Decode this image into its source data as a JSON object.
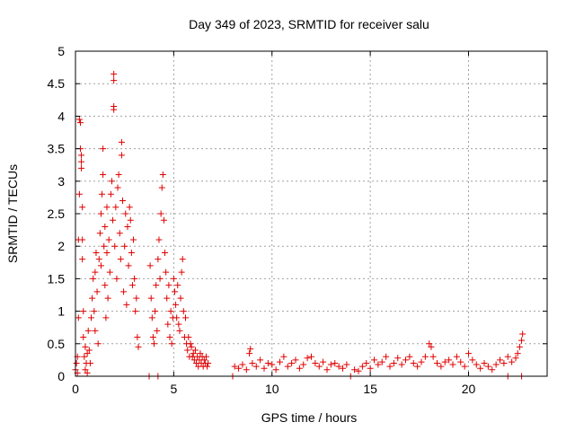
{
  "chart_data": {
    "type": "scatter",
    "title": "Day 349 of 2023, SRMTID for receiver salu",
    "xlabel": "GPS time / hours",
    "ylabel": "SRMTID / TECUs",
    "xlim": [
      0,
      24
    ],
    "ylim": [
      0,
      5
    ],
    "xticks": [
      0,
      5,
      10,
      15,
      20
    ],
    "yticks": [
      0,
      0.5,
      1,
      1.5,
      2,
      2.5,
      3,
      3.5,
      4,
      4.5,
      5
    ],
    "xtick_labels": [
      "0",
      "5",
      "10",
      "15",
      "20"
    ],
    "ytick_labels": [
      "0",
      "0.5",
      "1",
      "1.5",
      "2",
      "2.5",
      "3",
      "3.5",
      "4",
      "4.5",
      "5"
    ],
    "grid": true,
    "marker": "plus",
    "color": "#e00000",
    "series": [
      {
        "name": "SRMTID",
        "points": [
          [
            0.0,
            0.1
          ],
          [
            0.05,
            0.2
          ],
          [
            0.1,
            0.3
          ],
          [
            0.1,
            0.05
          ],
          [
            0.15,
            0.9
          ],
          [
            0.15,
            2.1
          ],
          [
            0.2,
            2.8
          ],
          [
            0.2,
            3.95
          ],
          [
            0.25,
            3.9
          ],
          [
            0.25,
            3.5
          ],
          [
            0.3,
            3.4
          ],
          [
            0.3,
            3.3
          ],
          [
            0.3,
            3.2
          ],
          [
            0.35,
            2.6
          ],
          [
            0.35,
            2.1
          ],
          [
            0.35,
            1.8
          ],
          [
            0.4,
            1.0
          ],
          [
            0.4,
            0.6
          ],
          [
            0.45,
            0.3
          ],
          [
            0.5,
            0.1
          ],
          [
            0.5,
            0.45
          ],
          [
            0.55,
            0.2
          ],
          [
            0.6,
            0.05
          ],
          [
            0.6,
            0.35
          ],
          [
            0.65,
            0.7
          ],
          [
            0.7,
            0.4
          ],
          [
            0.75,
            0.2
          ],
          [
            0.8,
            0.9
          ],
          [
            0.85,
            1.2
          ],
          [
            0.9,
            1.5
          ],
          [
            0.95,
            1.0
          ],
          [
            1.0,
            1.6
          ],
          [
            1.0,
            0.7
          ],
          [
            1.05,
            1.9
          ],
          [
            1.1,
            1.3
          ],
          [
            1.15,
            0.5
          ],
          [
            1.2,
            1.8
          ],
          [
            1.25,
            2.2
          ],
          [
            1.3,
            1.7
          ],
          [
            1.3,
            2.5
          ],
          [
            1.35,
            2.8
          ],
          [
            1.4,
            3.1
          ],
          [
            1.4,
            3.5
          ],
          [
            1.45,
            2.0
          ],
          [
            1.5,
            1.4
          ],
          [
            1.5,
            2.3
          ],
          [
            1.55,
            0.9
          ],
          [
            1.6,
            1.9
          ],
          [
            1.6,
            2.6
          ],
          [
            1.65,
            1.2
          ],
          [
            1.7,
            2.1
          ],
          [
            1.75,
            1.6
          ],
          [
            1.8,
            2.8
          ],
          [
            1.85,
            3.0
          ],
          [
            1.9,
            2.4
          ],
          [
            1.95,
            4.1
          ],
          [
            1.95,
            4.15
          ],
          [
            1.95,
            4.55
          ],
          [
            1.95,
            4.65
          ],
          [
            2.0,
            2.0
          ],
          [
            2.05,
            2.6
          ],
          [
            2.1,
            1.5
          ],
          [
            2.15,
            2.9
          ],
          [
            2.2,
            3.1
          ],
          [
            2.25,
            2.2
          ],
          [
            2.3,
            1.8
          ],
          [
            2.35,
            3.6
          ],
          [
            2.35,
            3.4
          ],
          [
            2.4,
            2.7
          ],
          [
            2.45,
            1.3
          ],
          [
            2.5,
            2.0
          ],
          [
            2.55,
            2.5
          ],
          [
            2.6,
            1.1
          ],
          [
            2.65,
            2.3
          ],
          [
            2.7,
            1.7
          ],
          [
            2.75,
            2.6
          ],
          [
            2.8,
            2.4
          ],
          [
            2.85,
            1.9
          ],
          [
            2.9,
            1.4
          ],
          [
            2.95,
            2.1
          ],
          [
            3.0,
            1.5
          ],
          [
            3.05,
            1.0
          ],
          [
            3.1,
            1.2
          ],
          [
            3.15,
            0.6
          ],
          [
            3.2,
            0.45
          ],
          [
            3.8,
            1.7
          ],
          [
            3.85,
            1.2
          ],
          [
            3.9,
            0.9
          ],
          [
            3.95,
            0.6
          ],
          [
            4.0,
            0.5
          ],
          [
            4.05,
            1.0
          ],
          [
            4.1,
            1.4
          ],
          [
            4.15,
            0.7
          ],
          [
            4.2,
            1.8
          ],
          [
            4.25,
            2.1
          ],
          [
            4.3,
            1.5
          ],
          [
            4.35,
            2.5
          ],
          [
            4.4,
            2.9
          ],
          [
            4.45,
            3.1
          ],
          [
            4.5,
            2.4
          ],
          [
            4.55,
            1.9
          ],
          [
            4.6,
            1.6
          ],
          [
            4.65,
            1.2
          ],
          [
            4.7,
            0.8
          ],
          [
            4.75,
            1.4
          ],
          [
            4.8,
            0.6
          ],
          [
            4.85,
            1.0
          ],
          [
            4.9,
            0.5
          ],
          [
            4.95,
            0.9
          ],
          [
            5.0,
            1.5
          ],
          [
            5.05,
            1.3
          ],
          [
            5.1,
            1.1
          ],
          [
            5.15,
            0.9
          ],
          [
            5.2,
            1.4
          ],
          [
            5.25,
            0.8
          ],
          [
            5.3,
            0.7
          ],
          [
            5.35,
            1.2
          ],
          [
            5.4,
            1.6
          ],
          [
            5.45,
            1.8
          ],
          [
            5.5,
            1.0
          ],
          [
            5.55,
            0.6
          ],
          [
            5.6,
            0.9
          ],
          [
            5.65,
            0.5
          ],
          [
            5.7,
            0.4
          ],
          [
            5.75,
            0.6
          ],
          [
            5.8,
            0.3
          ],
          [
            5.85,
            0.5
          ],
          [
            5.9,
            0.45
          ],
          [
            5.95,
            0.3
          ],
          [
            6.0,
            0.35
          ],
          [
            6.05,
            0.25
          ],
          [
            6.1,
            0.4
          ],
          [
            6.15,
            0.2
          ],
          [
            6.2,
            0.3
          ],
          [
            6.25,
            0.15
          ],
          [
            6.3,
            0.25
          ],
          [
            6.35,
            0.35
          ],
          [
            6.4,
            0.2
          ],
          [
            6.45,
            0.3
          ],
          [
            6.5,
            0.15
          ],
          [
            6.55,
            0.25
          ],
          [
            6.6,
            0.2
          ],
          [
            6.65,
            0.3
          ],
          [
            6.7,
            0.15
          ],
          [
            6.75,
            0.2
          ],
          [
            3.75,
            0.0
          ],
          [
            4.2,
            0.0
          ],
          [
            8.0,
            0.0
          ],
          [
            14.0,
            0.0
          ],
          [
            22.0,
            0.0
          ],
          [
            22.7,
            0.0
          ],
          [
            8.1,
            0.15
          ],
          [
            8.3,
            0.12
          ],
          [
            8.5,
            0.18
          ],
          [
            8.7,
            0.1
          ],
          [
            8.85,
            0.35
          ],
          [
            8.9,
            0.42
          ],
          [
            9.0,
            0.2
          ],
          [
            9.2,
            0.15
          ],
          [
            9.4,
            0.25
          ],
          [
            9.6,
            0.12
          ],
          [
            9.8,
            0.2
          ],
          [
            10.0,
            0.18
          ],
          [
            10.2,
            0.1
          ],
          [
            10.4,
            0.22
          ],
          [
            10.6,
            0.3
          ],
          [
            10.8,
            0.15
          ],
          [
            11.0,
            0.2
          ],
          [
            11.2,
            0.25
          ],
          [
            11.4,
            0.12
          ],
          [
            11.6,
            0.18
          ],
          [
            11.8,
            0.28
          ],
          [
            12.0,
            0.3
          ],
          [
            12.2,
            0.2
          ],
          [
            12.4,
            0.15
          ],
          [
            12.6,
            0.22
          ],
          [
            12.8,
            0.1
          ],
          [
            13.0,
            0.18
          ],
          [
            13.2,
            0.2
          ],
          [
            13.4,
            0.15
          ],
          [
            13.6,
            0.12
          ],
          [
            13.8,
            0.18
          ],
          [
            14.2,
            0.1
          ],
          [
            14.4,
            0.08
          ],
          [
            14.6,
            0.15
          ],
          [
            14.8,
            0.2
          ],
          [
            15.0,
            0.12
          ],
          [
            15.2,
            0.25
          ],
          [
            15.4,
            0.18
          ],
          [
            15.6,
            0.22
          ],
          [
            15.8,
            0.3
          ],
          [
            16.0,
            0.15
          ],
          [
            16.2,
            0.2
          ],
          [
            16.4,
            0.28
          ],
          [
            16.6,
            0.18
          ],
          [
            16.8,
            0.25
          ],
          [
            17.0,
            0.3
          ],
          [
            17.2,
            0.2
          ],
          [
            17.4,
            0.15
          ],
          [
            17.6,
            0.22
          ],
          [
            17.8,
            0.3
          ],
          [
            18.0,
            0.5
          ],
          [
            18.1,
            0.45
          ],
          [
            18.2,
            0.3
          ],
          [
            18.4,
            0.2
          ],
          [
            18.6,
            0.15
          ],
          [
            18.8,
            0.22
          ],
          [
            19.0,
            0.25
          ],
          [
            19.2,
            0.18
          ],
          [
            19.4,
            0.3
          ],
          [
            19.6,
            0.22
          ],
          [
            19.8,
            0.15
          ],
          [
            20.0,
            0.35
          ],
          [
            20.2,
            0.25
          ],
          [
            20.4,
            0.18
          ],
          [
            20.6,
            0.12
          ],
          [
            20.8,
            0.2
          ],
          [
            21.0,
            0.15
          ],
          [
            21.2,
            0.1
          ],
          [
            21.4,
            0.18
          ],
          [
            21.6,
            0.25
          ],
          [
            21.8,
            0.2
          ],
          [
            22.0,
            0.3
          ],
          [
            22.2,
            0.22
          ],
          [
            22.4,
            0.28
          ],
          [
            22.5,
            0.35
          ],
          [
            22.6,
            0.45
          ],
          [
            22.7,
            0.55
          ],
          [
            22.75,
            0.65
          ]
        ]
      }
    ]
  }
}
